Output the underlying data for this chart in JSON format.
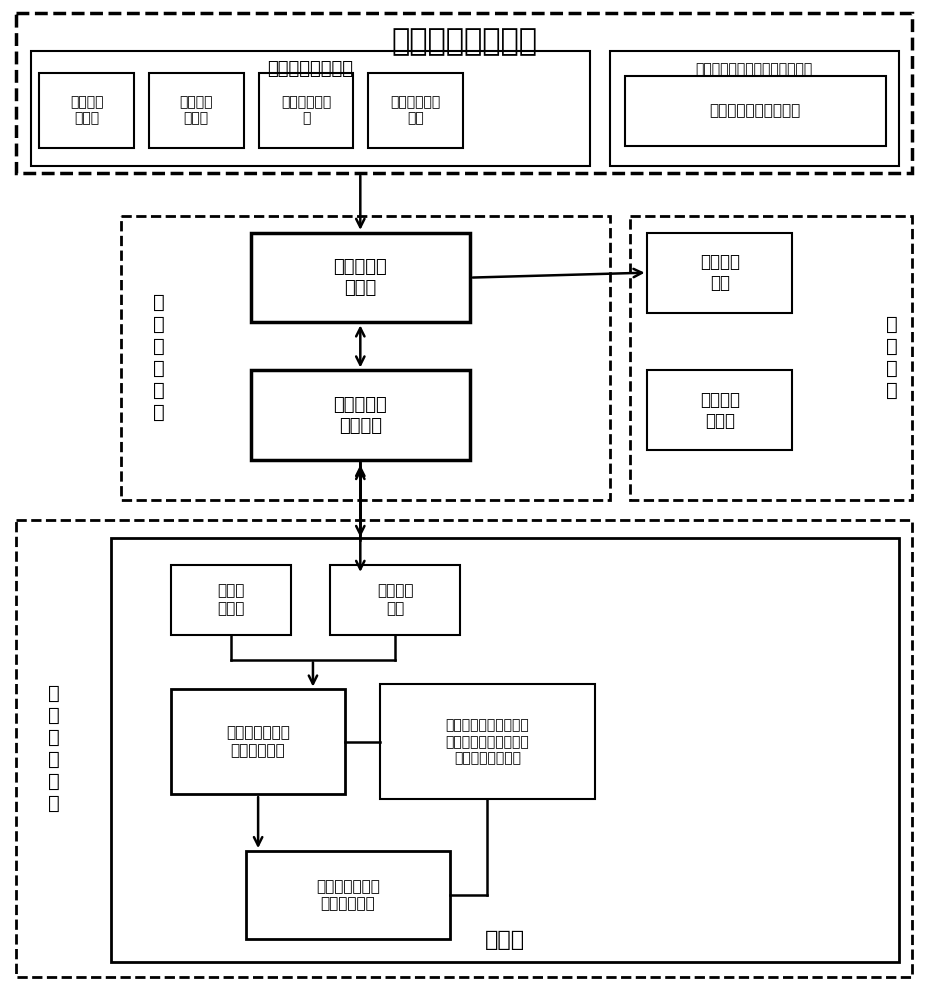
{
  "bg_color": "#ffffff",
  "top_title": "现场数据采集模块",
  "env_label": "环境数据监测模块",
  "asphalt_module_label": "沥青混合料摊铺时温度监测模块",
  "sensors": [
    "风速监测\n传感器",
    "气温监测\n传感器",
    "日照强度传感\n器",
    "下卧层温度传\n感器"
  ],
  "asphalt_sensor_label": "沥青混合料温度传感器",
  "data_recv_label": "数\n据\n收\n发\n模\n块",
  "field_recv_label": "现场数据收\n发单元",
  "ctrl_room_label": "控制室数据\n收发单元",
  "ctrl_module_label": "控\n制\n模\n块",
  "time_hint_label": "时间提示\n单元",
  "roller_ctrl_label": "压路机控\n制单元",
  "data_process_label": "数\n据\n处\n理\n模\n块",
  "computer_label": "计算机",
  "numerical_sw_label": "数值分\n析软件",
  "auto_ctrl_sw_label": "自动控制\n软件",
  "cooling_trend_label": "沥青混凝土摊铺\n后的降温趋势",
  "norm_req_label": "规范要求并结合试验段\n结果确定碾压开始温度\n和碾压终了的温度",
  "roll_time_label": "碾压开始时间和\n碾压终了时间"
}
